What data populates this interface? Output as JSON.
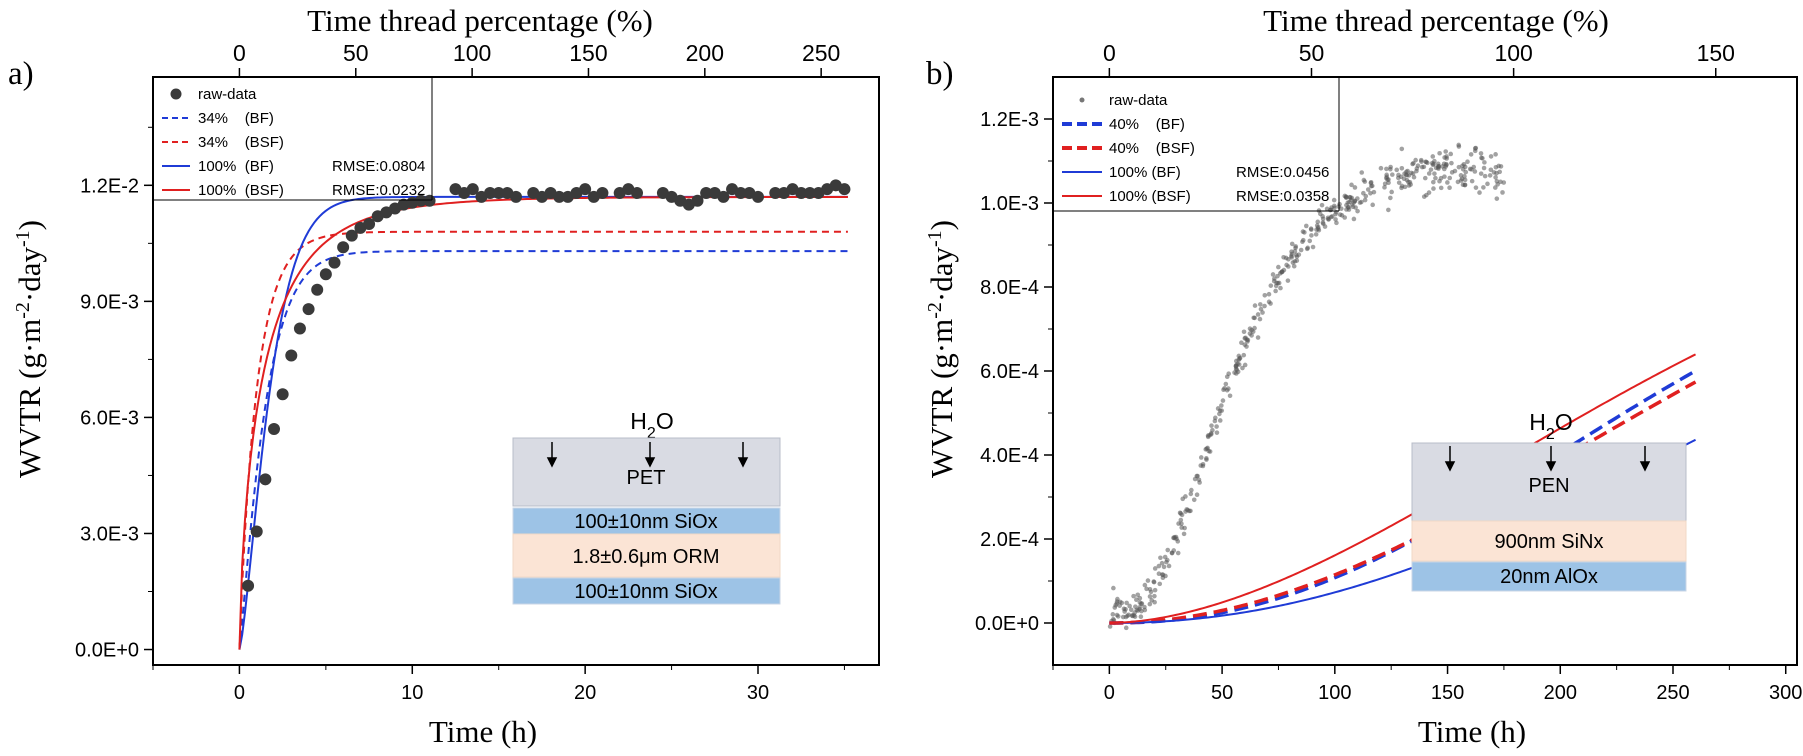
{
  "chart_data": [
    {
      "panel_label": "a)",
      "type": "scatter",
      "xlabel": "Time (h)",
      "ylabel": "WVTR (g·m-2·day-1)",
      "top_xlabel": "Time thread percentage (%)",
      "xlim": [
        -5,
        37
      ],
      "ylim": [
        -0.0004,
        0.0148
      ],
      "x_ticks": [
        "0",
        "10",
        "20",
        "30"
      ],
      "y_ticks": [
        "0.0E+0",
        "3.0E-3",
        "6.0E-3",
        "9.0E-3",
        "1.2E-2"
      ],
      "top_ticks": [
        "0",
        "50",
        "100",
        "150",
        "200",
        "250"
      ],
      "legend": [
        {
          "label": "raw-data",
          "style": "dot",
          "color": "#3a3a3a"
        },
        {
          "label": "34%    (BF)",
          "style": "dashed",
          "color": "#1f3bd6"
        },
        {
          "label": "34%    (BSF)",
          "style": "dashed",
          "color": "#e02020"
        },
        {
          "label": "100%  (BF)",
          "rmse": "RMSE:0.0804",
          "style": "solid",
          "color": "#1f3bd6"
        },
        {
          "label": "100%  (BSF)",
          "rmse": "RMSE:0.0232",
          "style": "solid",
          "color": "#e02020"
        }
      ],
      "raw_data": {
        "x": [
          0.5,
          1.0,
          1.5,
          2.0,
          2.5,
          3.0,
          3.5,
          4.0,
          4.5,
          5.0,
          5.5,
          6.0,
          6.5,
          7.0,
          7.5,
          8.0,
          8.5,
          9.0,
          9.5,
          10.0,
          10.5,
          11.0,
          12.5,
          13.0,
          13.5,
          14.0,
          14.5,
          15.0,
          15.5,
          16.0,
          17.0,
          17.5,
          18.0,
          18.5,
          19.0,
          19.5,
          20.0,
          20.5,
          21.0,
          22.0,
          22.5,
          23.0,
          24.5,
          25.0,
          25.5,
          26.0,
          26.5,
          27.0,
          27.5,
          28.0,
          28.5,
          29.0,
          29.5,
          30.0,
          31.0,
          31.5,
          32.0,
          32.5,
          33.0,
          33.5,
          34.0,
          34.5,
          35.0
        ],
        "y": [
          0.00165,
          0.00305,
          0.0044,
          0.0057,
          0.0066,
          0.0076,
          0.0083,
          0.0088,
          0.0093,
          0.0097,
          0.01,
          0.0104,
          0.0107,
          0.0109,
          0.011,
          0.0112,
          0.0113,
          0.0114,
          0.0115,
          0.01155,
          0.0116,
          0.0116,
          0.0119,
          0.0118,
          0.0119,
          0.0117,
          0.0118,
          0.0118,
          0.0118,
          0.0117,
          0.0118,
          0.0117,
          0.0118,
          0.0117,
          0.0117,
          0.0118,
          0.0119,
          0.0117,
          0.0118,
          0.0118,
          0.0119,
          0.0118,
          0.0118,
          0.0117,
          0.0116,
          0.0115,
          0.0116,
          0.0118,
          0.0118,
          0.0117,
          0.0119,
          0.0118,
          0.0118,
          0.0117,
          0.0118,
          0.0118,
          0.0119,
          0.0118,
          0.0118,
          0.0118,
          0.0119,
          0.012,
          0.0119
        ]
      },
      "fits": [
        {
          "name": "34% (BF)",
          "color": "#1f3bd6",
          "dashed": true,
          "model": {
            "a": 0.0103,
            "k": 0.8,
            "t0": 2.5,
            "d": 1.15
          }
        },
        {
          "name": "34% (BSF)",
          "color": "#e02020",
          "dashed": true,
          "model": {
            "a": 0.0108,
            "k": 0.85,
            "t0": 2.0,
            "d": 0.95
          }
        },
        {
          "name": "100% (BF)",
          "color": "#1f3bd6",
          "dashed": false,
          "model": {
            "a": 0.0117,
            "k": 0.9,
            "t0": 3.2,
            "d": 1.35
          }
        },
        {
          "name": "100% (BSF)",
          "color": "#e02020",
          "dashed": false,
          "model": {
            "a": 0.0117,
            "k": 0.6,
            "t0": 2.8,
            "d": 0.7
          }
        }
      ],
      "inset": {
        "title": "H2O",
        "layers": [
          {
            "label": "PET",
            "color": "#d9dbe3"
          },
          {
            "label": "100±10nm SiOx",
            "color": "#9dc3e6"
          },
          {
            "label": "1.8±0.6μm ORM",
            "color": "#fbe4d5"
          },
          {
            "label": "100±10nm SiOx",
            "color": "#9dc3e6"
          }
        ]
      }
    },
    {
      "panel_label": "b)",
      "type": "scatter",
      "xlabel": "Time (h)",
      "ylabel": "WVTR (g·m-2·day-1)",
      "top_xlabel": "Time thread percentage (%)",
      "xlim": [
        -25,
        305
      ],
      "ylim": [
        -0.0001,
        0.0013
      ],
      "x_ticks": [
        "0",
        "50",
        "100",
        "150",
        "200",
        "250",
        "300"
      ],
      "y_ticks": [
        "0.0E+0",
        "2.0E-4",
        "4.0E-4",
        "6.0E-4",
        "8.0E-4",
        "1.0E-3",
        "1.2E-3"
      ],
      "top_ticks": [
        "0",
        "50",
        "100",
        "150"
      ],
      "legend": [
        {
          "label": "raw-data",
          "style": "dot",
          "color": "#777777"
        },
        {
          "label": "40%    (BF)",
          "style": "dashed",
          "color": "#1f3bd6"
        },
        {
          "label": "40%    (BSF)",
          "style": "dashed",
          "color": "#e02020"
        },
        {
          "label": "100% (BF)",
          "rmse": "RMSE:0.0456",
          "style": "solid",
          "color": "#1f3bd6"
        },
        {
          "label": "100% (BSF)",
          "rmse": "RMSE:0.0358",
          "style": "solid",
          "color": "#e02020"
        }
      ],
      "raw_trend": {
        "x": [
          0,
          10,
          20,
          30,
          40,
          50,
          60,
          70,
          80,
          90,
          100,
          110,
          120,
          130,
          140,
          150,
          160,
          170,
          180
        ],
        "y": [
          3e-05,
          3e-05,
          8e-05,
          0.0002,
          0.00036,
          0.00052,
          0.00066,
          0.00077,
          0.00086,
          0.00093,
          0.00098,
          0.00101,
          0.00104,
          0.00106,
          0.00107,
          0.00108,
          0.00108,
          0.00107,
          0.00107
        ],
        "x_range": [
          0,
          175
        ],
        "spread": 6e-05,
        "count": 480
      },
      "fits": [
        {
          "name": "40% (BF)",
          "color": "#1f3bd6",
          "dashed": true,
          "model": {
            "a": 0.00097,
            "k": 0.055,
            "t0": 18,
            "d": 2.2
          }
        },
        {
          "name": "40% (BSF)",
          "color": "#e02020",
          "dashed": true,
          "model": {
            "a": 0.00108,
            "k": 0.045,
            "t0": 17,
            "d": 2.0
          }
        },
        {
          "name": "100% (BF)",
          "color": "#1f3bd6",
          "dashed": false,
          "model": {
            "a": 0.00106,
            "k": 0.05,
            "t0": 22,
            "d": 2.1
          }
        },
        {
          "name": "100% (BSF)",
          "color": "#e02020",
          "dashed": false,
          "model": {
            "a": 0.00107,
            "k": 0.045,
            "t0": 16,
            "d": 1.8
          }
        }
      ],
      "inset": {
        "title": "H2O",
        "layers": [
          {
            "label": "PEN",
            "color": "#d9dbe3"
          },
          {
            "label": "900nm SiNx",
            "color": "#fbe4d5"
          },
          {
            "label": "20nm AlOx",
            "color": "#9dc3e6"
          }
        ]
      }
    }
  ]
}
